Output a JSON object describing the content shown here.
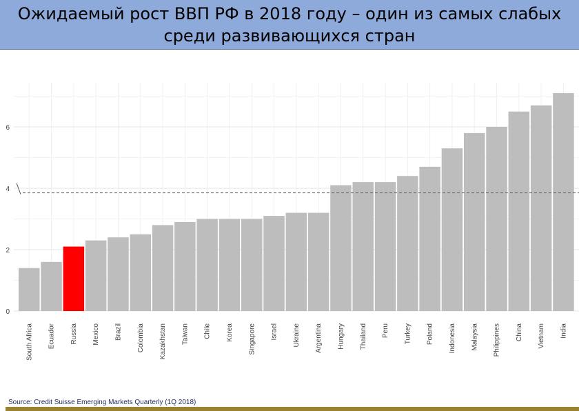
{
  "title_line1": "Ожидаемый рост ВВП РФ в 2018 году – один из самых слабых",
  "title_line2": "среди развивающихся стран",
  "source": "Source: Credit Suisse Emerging Markets Quarterly (1Q 2018)",
  "chart_data": {
    "type": "bar",
    "categories": [
      "South Africa",
      "Ecuador",
      "Russia",
      "Mexico",
      "Brazil",
      "Colombia",
      "Kazakhstan",
      "Taiwan",
      "Chile",
      "Korea",
      "Singapore",
      "Israel",
      "Ukraine",
      "Argentina",
      "Hungary",
      "Thailand",
      "Peru",
      "Turkey",
      "Poland",
      "Indonesia",
      "Malaysia",
      "Philippines",
      "China",
      "Vietnam",
      "India"
    ],
    "values": [
      1.4,
      1.6,
      2.1,
      2.3,
      2.4,
      2.5,
      2.8,
      2.9,
      3.0,
      3.0,
      3.0,
      3.1,
      3.2,
      3.2,
      4.1,
      4.2,
      4.2,
      4.4,
      4.7,
      5.3,
      5.8,
      6.0,
      6.5,
      6.7,
      7.1
    ],
    "highlight": "Russia",
    "highlight_color": "#ff0000",
    "bar_color": "#bdbdbd",
    "reference_line": 3.85,
    "yticks": [
      0,
      2,
      4,
      6
    ],
    "ylim": [
      0,
      7.4
    ],
    "title": "",
    "xlabel": "",
    "ylabel": ""
  }
}
